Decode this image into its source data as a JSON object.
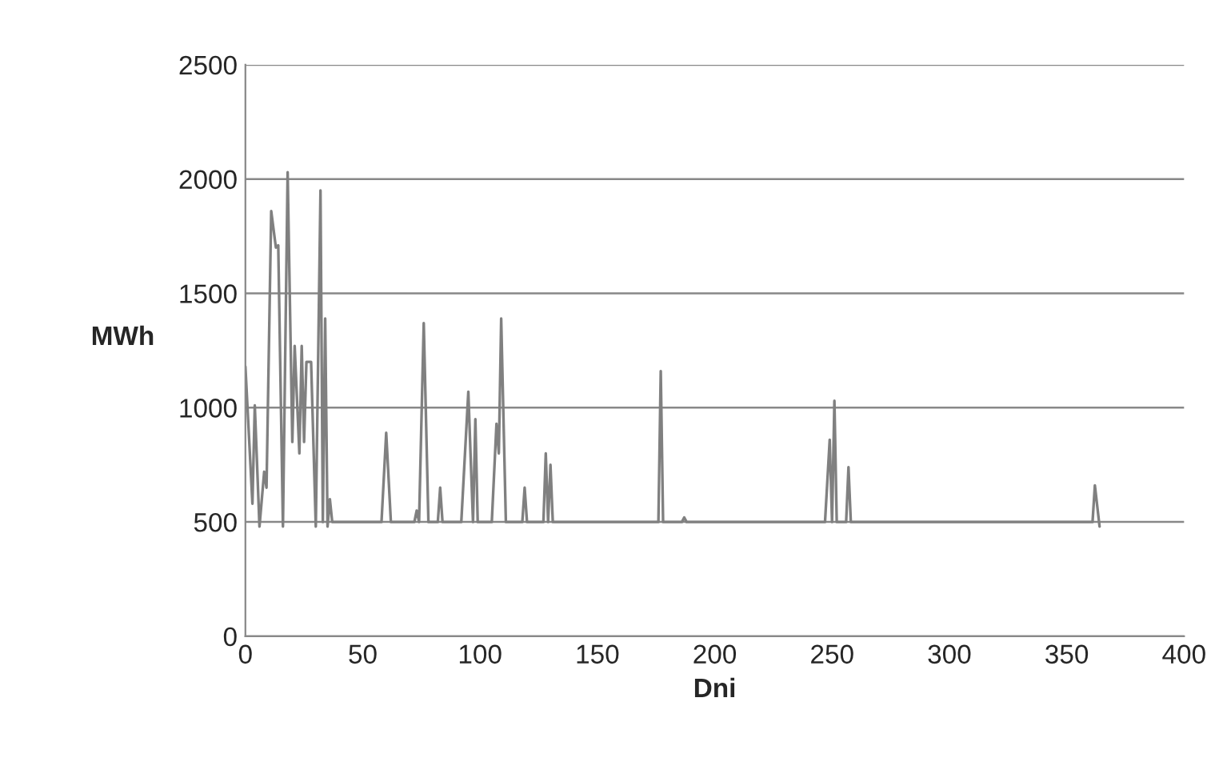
{
  "chart_data": {
    "type": "line",
    "xlabel": "Dni",
    "ylabel": "MWh",
    "xlim": [
      0,
      400
    ],
    "xticks": [
      0,
      50,
      100,
      150,
      200,
      250,
      300,
      350,
      400
    ],
    "ylim": [
      0,
      2500
    ],
    "yticks": [
      0,
      500,
      1000,
      1500,
      2000,
      2500
    ],
    "grid": "y",
    "series": [
      {
        "color": "#808080",
        "x": [
          0,
          3,
          4,
          6,
          8,
          9,
          11,
          13,
          14,
          16,
          18,
          20,
          21,
          23,
          24,
          25,
          26,
          28,
          30,
          32,
          33,
          34,
          35,
          36,
          37,
          58,
          60,
          62,
          72,
          73,
          74,
          76,
          78,
          82,
          83,
          84,
          92,
          94,
          95,
          96,
          97,
          98,
          99,
          105,
          107,
          108,
          109,
          111,
          118,
          119,
          120,
          127,
          128,
          129,
          130,
          131,
          176,
          177,
          178,
          186,
          187,
          188,
          247,
          249,
          250,
          251,
          252,
          256,
          257,
          258,
          361,
          362,
          364
        ],
        "values": [
          1180,
          580,
          1010,
          480,
          720,
          650,
          1860,
          1700,
          1710,
          480,
          2030,
          850,
          1270,
          800,
          1270,
          850,
          1200,
          1200,
          480,
          1950,
          500,
          1390,
          480,
          600,
          500,
          500,
          890,
          500,
          500,
          550,
          500,
          1370,
          500,
          500,
          650,
          500,
          500,
          880,
          1070,
          780,
          500,
          950,
          500,
          500,
          930,
          800,
          1390,
          500,
          500,
          650,
          500,
          500,
          800,
          500,
          750,
          500,
          500,
          1160,
          500,
          500,
          520,
          500,
          500,
          860,
          500,
          1030,
          500,
          500,
          740,
          500,
          500,
          660,
          480
        ]
      }
    ]
  }
}
